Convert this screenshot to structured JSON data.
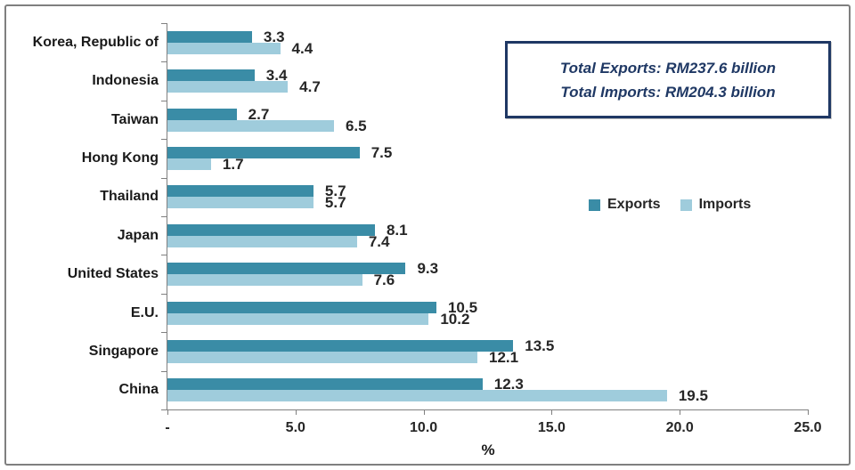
{
  "frame": {
    "border_color": "#7F7F7F"
  },
  "info_box": {
    "line1": "Total Exports: RM237.6 billion",
    "line2": "Total Imports: RM204.3 billion",
    "border_color": "#1F3864",
    "text_color": "#1F3864"
  },
  "chart_data": {
    "type": "bar",
    "orientation": "horizontal",
    "xlabel": "%",
    "xlim": [
      0,
      25
    ],
    "x_ticks": [
      "-",
      "5.0",
      "10.0",
      "15.0",
      "20.0",
      "25.0"
    ],
    "x_tick_values": [
      0,
      5,
      10,
      15,
      20,
      25
    ],
    "grid": false,
    "legend_position": "right-middle",
    "axis_color": "#808080",
    "label_color": "#262626",
    "categories": [
      "Korea, Republic of",
      "Indonesia",
      "Taiwan",
      "Hong Kong",
      "Thailand",
      "Japan",
      "United States",
      "E.U.",
      "Singapore",
      "China"
    ],
    "series": [
      {
        "name": "Exports",
        "color": "#3A8CA6",
        "values": [
          3.3,
          3.4,
          2.7,
          7.5,
          5.7,
          8.1,
          9.3,
          10.5,
          13.5,
          12.3
        ]
      },
      {
        "name": "Imports",
        "color": "#9FCCDC",
        "values": [
          4.4,
          4.7,
          6.5,
          1.7,
          5.7,
          7.4,
          7.6,
          10.2,
          12.1,
          19.5
        ]
      }
    ]
  }
}
